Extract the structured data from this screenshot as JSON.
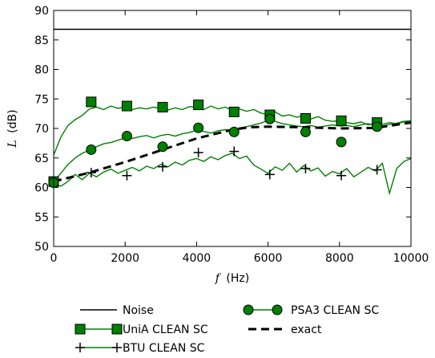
{
  "chart_data": {
    "type": "line",
    "xlabel_var": "f",
    "xlabel_unit": "(Hz)",
    "ylabel_var": "L",
    "ylabel_unit": "(dB)",
    "xlim": [
      0,
      10000
    ],
    "ylim": [
      50,
      90
    ],
    "x_ticks": [
      0,
      2000,
      4000,
      6000,
      8000,
      10000
    ],
    "y_ticks": [
      50,
      55,
      60,
      65,
      70,
      75,
      80,
      85,
      90
    ],
    "grid": false,
    "legend_position": "below",
    "series": [
      {
        "name": "Noise",
        "color": "#000000",
        "style": "solid",
        "marker": "none",
        "x": [
          0,
          10000
        ],
        "y": [
          86.8,
          86.8
        ]
      },
      {
        "name": "UniA CLEAN SC",
        "color": "#008000",
        "style": "solid",
        "marker": "square",
        "x": [
          0,
          200,
          400,
          600,
          800,
          1000,
          1200,
          1400,
          1600,
          1800,
          2000,
          2200,
          2400,
          2600,
          2800,
          3000,
          3200,
          3400,
          3600,
          3800,
          4000,
          4200,
          4400,
          4600,
          4800,
          5000,
          5200,
          5400,
          5600,
          5800,
          6000,
          6200,
          6400,
          6600,
          6800,
          7000,
          7200,
          7400,
          7600,
          7800,
          8000,
          8200,
          8400,
          8600,
          8800,
          9000,
          9200,
          9400,
          9600,
          9800,
          10000
        ],
        "y": [
          65.5,
          68.5,
          70.5,
          71.5,
          72.2,
          73.3,
          73.6,
          73.2,
          73.8,
          73.4,
          73.6,
          73.2,
          73.5,
          73.3,
          73.6,
          73.4,
          73.1,
          73.5,
          73.2,
          73.7,
          73.6,
          73.2,
          73.8,
          73.3,
          73.6,
          73.1,
          73.3,
          72.9,
          73.2,
          72.6,
          72.4,
          72.8,
          72.1,
          72.3,
          71.9,
          72.2,
          71.6,
          72.0,
          71.4,
          71.2,
          71.3,
          71.0,
          70.8,
          71.1,
          70.6,
          70.9,
          70.4,
          70.7,
          70.9,
          71.2,
          71.3
        ],
        "marker_x": [
          0,
          1050,
          2050,
          3050,
          4050,
          5050,
          6050,
          7050,
          8050,
          9050
        ],
        "marker_y": [
          61.0,
          74.5,
          73.8,
          73.6,
          74.0,
          72.8,
          72.3,
          71.7,
          71.3,
          71.0
        ]
      },
      {
        "name": "BTU CLEAN SC",
        "color": "#008000",
        "style": "solid",
        "marker": "plus",
        "x": [
          0,
          200,
          400,
          600,
          800,
          1000,
          1200,
          1400,
          1600,
          1800,
          2000,
          2200,
          2400,
          2600,
          2800,
          3000,
          3200,
          3400,
          3600,
          3800,
          4000,
          4200,
          4400,
          4600,
          4800,
          5000,
          5200,
          5400,
          5600,
          5800,
          6000,
          6200,
          6400,
          6600,
          6800,
          7000,
          7200,
          7400,
          7600,
          7800,
          8000,
          8200,
          8400,
          8600,
          8800,
          9000,
          9200,
          9400,
          9600,
          9800,
          10000
        ],
        "y": [
          60.6,
          60.2,
          61.0,
          62.2,
          61.3,
          62.4,
          61.8,
          62.6,
          63.1,
          62.4,
          62.9,
          63.4,
          62.8,
          63.6,
          63.2,
          63.9,
          63.5,
          64.3,
          63.8,
          64.6,
          64.9,
          64.4,
          65.2,
          64.7,
          65.4,
          65.8,
          64.9,
          65.3,
          63.8,
          63.1,
          62.4,
          63.5,
          62.9,
          64.1,
          62.6,
          63.7,
          62.8,
          63.3,
          61.9,
          62.7,
          62.3,
          63.2,
          61.8,
          62.6,
          63.4,
          62.8,
          64.1,
          59.0,
          63.2,
          64.4,
          64.9
        ],
        "marker_x": [
          0,
          1050,
          2050,
          3050,
          4050,
          5050,
          6050,
          7050,
          8050,
          9050
        ],
        "marker_y": [
          61.0,
          62.5,
          62.0,
          63.5,
          65.9,
          66.1,
          62.2,
          63.2,
          62.0,
          63.0
        ]
      },
      {
        "name": "PSA3 CLEAN SC",
        "color": "#008000",
        "style": "solid",
        "marker": "circle",
        "x": [
          0,
          200,
          400,
          600,
          800,
          1000,
          1200,
          1400,
          1600,
          1800,
          2000,
          2200,
          2400,
          2600,
          2800,
          3000,
          3200,
          3400,
          3600,
          3800,
          4000,
          4200,
          4400,
          4600,
          4800,
          5000,
          5200,
          5400,
          5600,
          5800,
          6000,
          6200,
          6400,
          6600,
          6800,
          7000,
          7200,
          7400,
          7600,
          7800,
          8000,
          8200,
          8400,
          8600,
          8800,
          9000,
          9200,
          9400,
          9600,
          9800,
          10000
        ],
        "y": [
          61.0,
          62.4,
          63.9,
          65.0,
          65.8,
          66.3,
          66.9,
          67.4,
          67.6,
          68.0,
          68.4,
          68.3,
          68.6,
          68.8,
          68.4,
          68.8,
          69.0,
          68.7,
          69.1,
          69.3,
          69.7,
          69.5,
          69.2,
          69.6,
          69.8,
          69.6,
          70.1,
          70.3,
          70.6,
          70.9,
          71.4,
          71.2,
          70.8,
          70.6,
          70.4,
          70.3,
          70.5,
          70.2,
          70.4,
          70.6,
          70.4,
          70.5,
          70.3,
          70.6,
          70.8,
          70.5,
          70.7,
          71.0,
          70.8,
          71.1,
          71.2
        ],
        "marker_x": [
          0,
          1050,
          2050,
          3050,
          4050,
          5050,
          6050,
          7050,
          8050,
          9050
        ],
        "marker_y": [
          60.8,
          66.4,
          68.7,
          66.9,
          70.1,
          69.4,
          71.6,
          69.4,
          67.7,
          70.3
        ]
      },
      {
        "name": "exact",
        "color": "#000000",
        "style": "dashed",
        "marker": "none",
        "x": [
          0,
          1000,
          2000,
          3000,
          4000,
          5000,
          5500,
          6000,
          7000,
          8000,
          9000,
          10000
        ],
        "y": [
          61.0,
          62.5,
          64.3,
          66.3,
          68.3,
          69.8,
          70.2,
          70.3,
          70.2,
          70.0,
          70.1,
          71.0
        ]
      }
    ],
    "legend": {
      "noise": "Noise",
      "unia": "UniA CLEAN SC",
      "btu": "BTU CLEAN SC",
      "psa3": "PSA3 CLEAN SC",
      "exact": "exact"
    }
  }
}
